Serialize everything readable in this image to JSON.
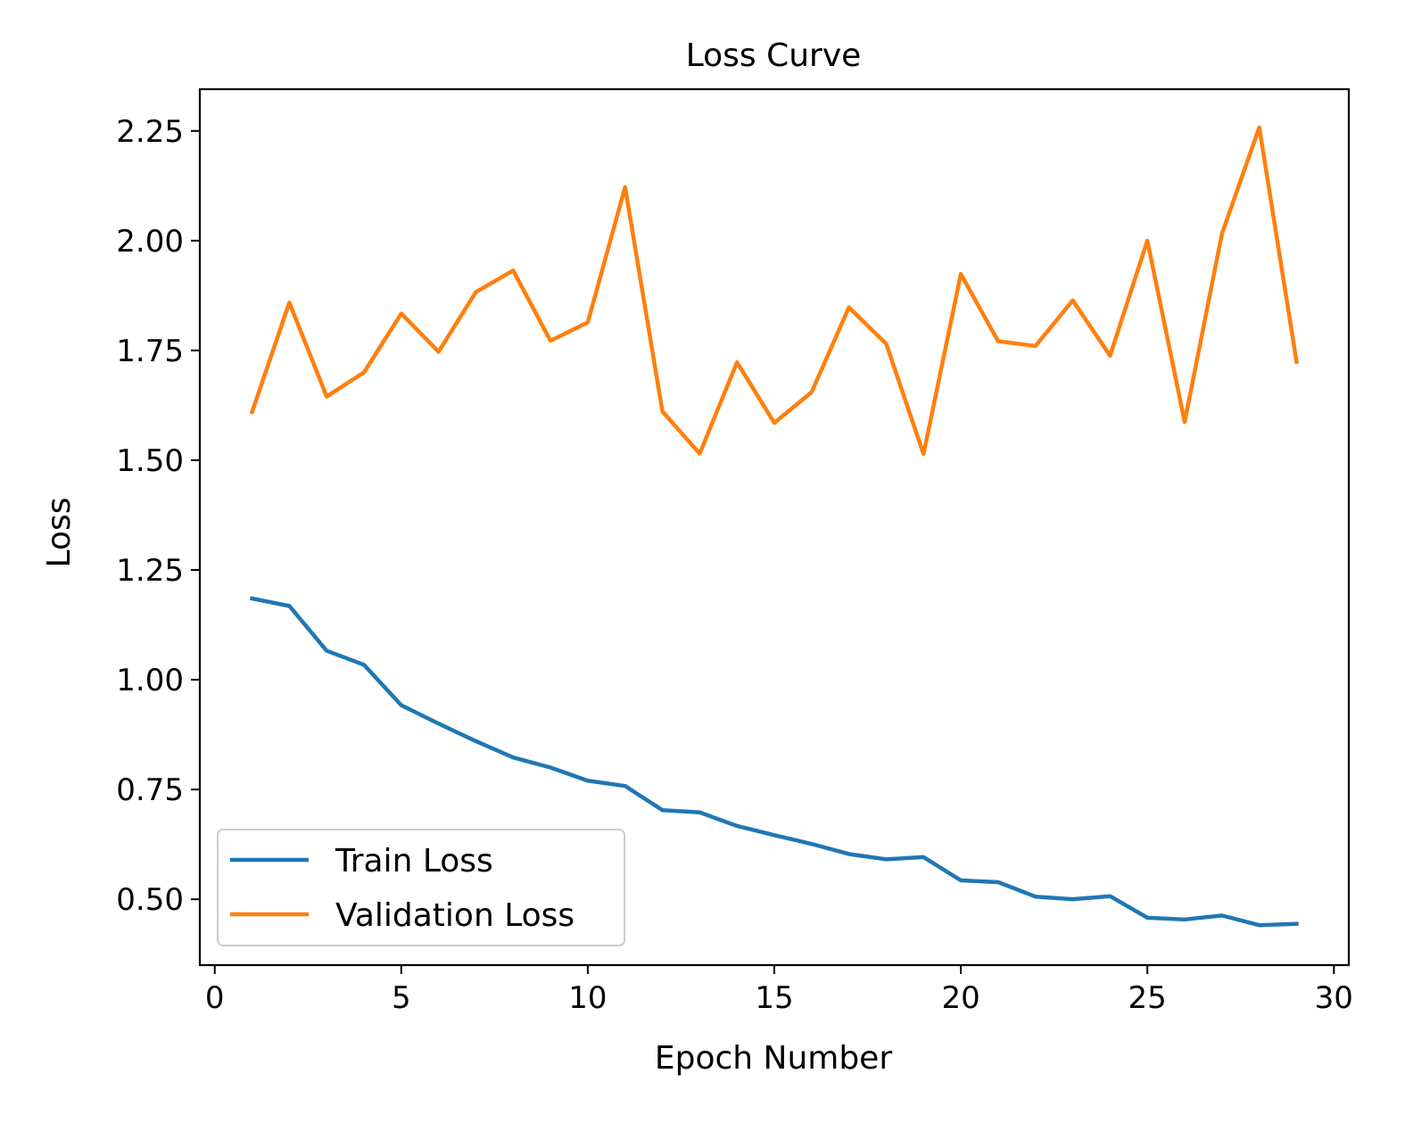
{
  "chart_data": {
    "type": "line",
    "title": "Loss Curve",
    "xlabel": "Epoch Number",
    "ylabel": "Loss",
    "xlim": [
      -0.4,
      30.4
    ],
    "ylim": [
      0.35,
      2.345
    ],
    "xticks": [
      0,
      5,
      10,
      15,
      20,
      25,
      30
    ],
    "xtick_labels": [
      "0",
      "5",
      "10",
      "15",
      "20",
      "25",
      "30"
    ],
    "yticks": [
      0.5,
      0.75,
      1.0,
      1.25,
      1.5,
      1.75,
      2.0,
      2.25
    ],
    "ytick_labels": [
      "0.50",
      "0.75",
      "1.00",
      "1.25",
      "1.50",
      "1.75",
      "2.00",
      "2.25"
    ],
    "grid": false,
    "legend_position": "lower-left",
    "x": [
      1,
      2,
      3,
      4,
      5,
      6,
      7,
      8,
      9,
      10,
      11,
      12,
      13,
      14,
      15,
      16,
      17,
      18,
      19,
      20,
      21,
      22,
      23,
      24,
      25,
      26,
      27,
      28,
      29
    ],
    "series": [
      {
        "name": "Train Loss",
        "color": "#1f77b4",
        "values": [
          1.185,
          1.168,
          1.066,
          1.034,
          0.942,
          0.9,
          0.86,
          0.823,
          0.8,
          0.77,
          0.758,
          0.703,
          0.698,
          0.667,
          0.646,
          0.626,
          0.603,
          0.591,
          0.596,
          0.543,
          0.539,
          0.506,
          0.5,
          0.507,
          0.458,
          0.454,
          0.463,
          0.441,
          0.444
        ]
      },
      {
        "name": "Validation Loss",
        "color": "#ff7f0e",
        "values": [
          1.61,
          1.859,
          1.645,
          1.7,
          1.834,
          1.747,
          1.883,
          1.932,
          1.772,
          1.814,
          2.122,
          1.611,
          1.515,
          1.723,
          1.585,
          1.655,
          1.848,
          1.765,
          1.514,
          1.924,
          1.771,
          1.76,
          1.864,
          1.738,
          2.0,
          1.587,
          2.016,
          2.258,
          1.724
        ]
      }
    ]
  }
}
